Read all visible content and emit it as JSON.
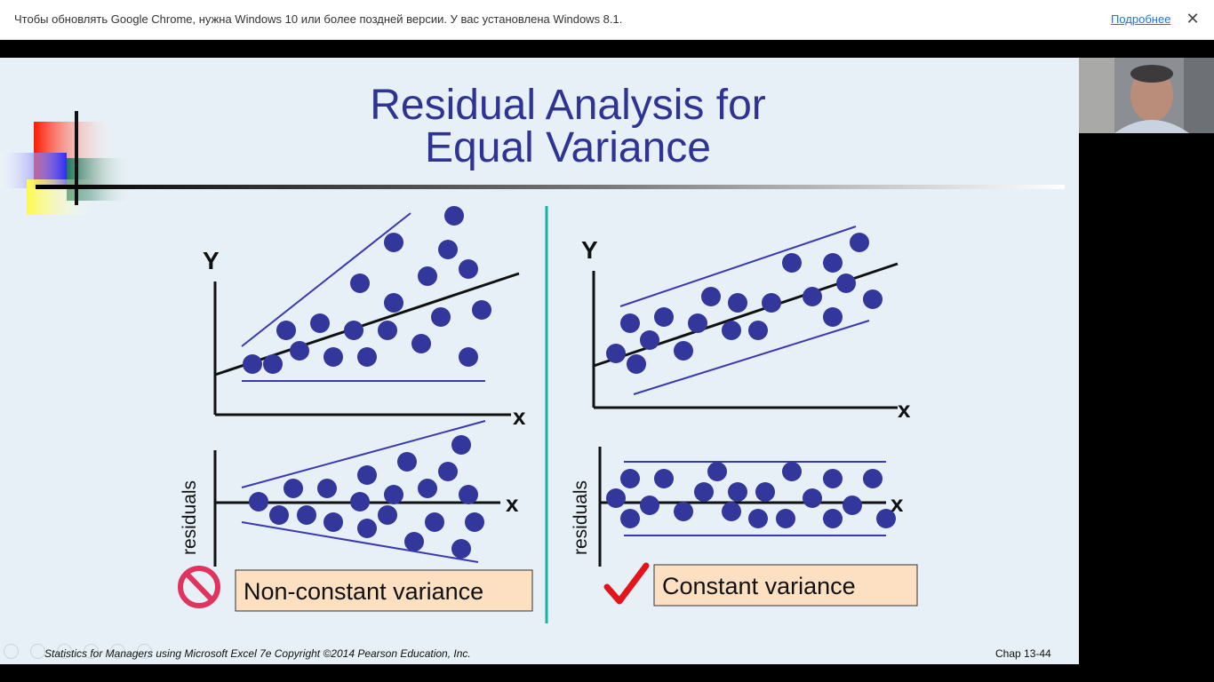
{
  "browser": {
    "infobar_text": "Чтобы обновлять Google Chrome, нужна Windows 10 или более поздней версии. У вас установлена Windows 8.1.",
    "infobar_link": "Подробнее",
    "close_symbol": "✕"
  },
  "slide": {
    "title_line1": "Residual Analysis for",
    "title_line2": "Equal Variance",
    "left_panel": {
      "y_label": "Y",
      "x_label": "x",
      "residual_x_label": "x",
      "residuals_label": "residuals",
      "caption": "Non-constant variance",
      "verdict_icon": "prohibited-icon"
    },
    "right_panel": {
      "y_label": "Y",
      "x_label": "x",
      "residual_x_label": "x",
      "residuals_label": "residuals",
      "caption": "Constant variance",
      "verdict_icon": "checkmark-icon"
    },
    "footer_left": "Statistics for Managers using Microsoft Excel 7e Copyright ©2014 Pearson Education, Inc.",
    "footer_right": "Chap 13-44"
  },
  "colors": {
    "title": "#2f3393",
    "dots": "#33369a",
    "envelope_lines": "#3a3ab0",
    "divider": "#13b3a4",
    "caption_box": "#fde0c2",
    "prohibited": "#e0345e",
    "checkmark": "#e3141a"
  }
}
